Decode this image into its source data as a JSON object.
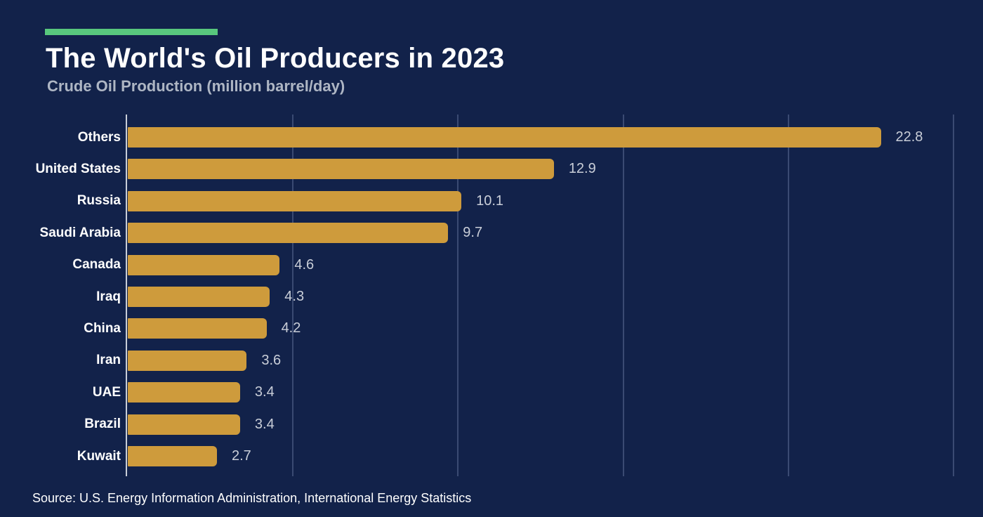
{
  "colors": {
    "bg": "#12224A",
    "bar": "#CE9B3C",
    "accent": "#58C87D",
    "title": "#FFFFFF",
    "subtitle": "#AEB6C4",
    "category": "#FFFFFF",
    "value": "#C9CED8",
    "grid": "#3A4A72",
    "axis": "#C9CED8",
    "source": "#FFFFFF"
  },
  "chart_data": {
    "type": "bar",
    "orientation": "horizontal",
    "title": "The World's Oil Producers in 2023",
    "subtitle": "Crude Oil Production (million barrel/day)",
    "categories": [
      "Others",
      "United States",
      "Russia",
      "Saudi Arabia",
      "Canada",
      "Iraq",
      "China",
      "Iran",
      "UAE",
      "Brazil",
      "Kuwait"
    ],
    "values": [
      22.8,
      12.9,
      10.1,
      9.7,
      4.6,
      4.3,
      4.2,
      3.6,
      3.4,
      3.4,
      2.7
    ],
    "value_label_decimals": 1,
    "xlim": [
      0,
      25
    ],
    "grid_x_values": [
      5,
      10,
      15,
      20,
      25
    ],
    "grid": "vertical-only, no tick labels",
    "legend": "none",
    "value_labels": "outside right end of each bar",
    "source_note": "Source: U.S. Energy Information Administration, International Energy Statistics"
  }
}
